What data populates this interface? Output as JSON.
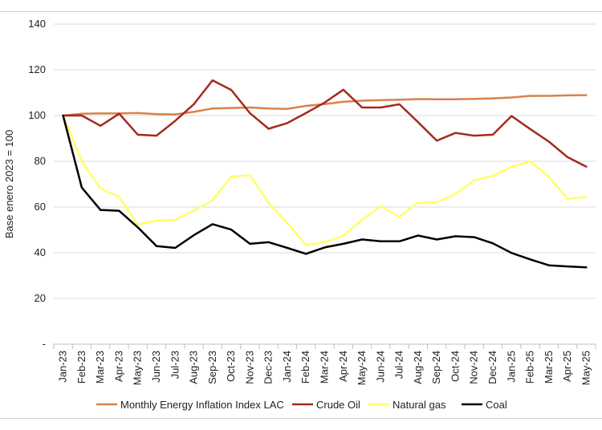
{
  "chart_data": {
    "type": "line",
    "title": "",
    "xlabel": "",
    "ylabel": "Base enero 2023 = 100",
    "ylim": [
      0,
      140
    ],
    "yticks": [
      {
        "value": 0,
        "label": "-"
      },
      {
        "value": 20,
        "label": "20"
      },
      {
        "value": 40,
        "label": "40"
      },
      {
        "value": 60,
        "label": "60"
      },
      {
        "value": 80,
        "label": "80"
      },
      {
        "value": 100,
        "label": "100"
      },
      {
        "value": 120,
        "label": "120"
      },
      {
        "value": 140,
        "label": "140"
      }
    ],
    "grid": "horizontal",
    "legend_position": "bottom",
    "categories": [
      "Jan-23",
      "Feb-23",
      "Mar-23",
      "Apr-23",
      "May-23",
      "Jun-23",
      "Jul-23",
      "Aug-23",
      "Sep-23",
      "Oct-23",
      "Nov-23",
      "Dec-23",
      "Jan-24",
      "Feb-24",
      "Mar-24",
      "Apr-24",
      "May-24",
      "Jun-24",
      "Jul-24",
      "Aug-24",
      "Sep-24",
      "Oct-24",
      "Nov-24",
      "Dec-24",
      "Jan-25",
      "Feb-25",
      "Mar-25",
      "Apr-25",
      "May-25"
    ],
    "series": [
      {
        "name": "Monthly Energy Inflation Index LAC",
        "color": "#D9824A",
        "values": [
          100,
          100.8,
          100.9,
          100.9,
          101.1,
          100.6,
          100.5,
          101.6,
          103.1,
          103.3,
          103.5,
          103.1,
          102.9,
          104.2,
          105.0,
          106.0,
          106.5,
          106.7,
          106.9,
          107.2,
          107.1,
          107.1,
          107.3,
          107.5,
          107.9,
          108.6,
          108.6,
          108.8,
          108.9
        ]
      },
      {
        "name": "Crude Oil",
        "color": "#A52A1E",
        "values": [
          100,
          100,
          95.5,
          100.8,
          91.6,
          91.2,
          97.7,
          105,
          115.4,
          111.2,
          101,
          94.2,
          96.7,
          101.1,
          105.7,
          111.3,
          103.5,
          103.5,
          104.9,
          97.1,
          89,
          92.4,
          91.2,
          91.6,
          99.8,
          94.1,
          88.6,
          81.8,
          77.6
        ]
      },
      {
        "name": "Natural gas",
        "color": "#FFFF66",
        "values": [
          100,
          80,
          68.1,
          64.4,
          52.3,
          54,
          54.4,
          58.3,
          62.9,
          73.3,
          73.9,
          61.7,
          53.1,
          43.3,
          44.6,
          47.4,
          54.4,
          60.4,
          55.7,
          61.9,
          62.1,
          65.6,
          71.7,
          73.6,
          77.6,
          79.9,
          73.1,
          63.6,
          64.4
        ]
      },
      {
        "name": "Coal",
        "color": "#000000",
        "values": [
          100,
          68.5,
          58.7,
          58.3,
          51.1,
          42.9,
          42.1,
          47.7,
          52.5,
          50.1,
          43.9,
          44.6,
          42.1,
          39.5,
          42.3,
          43.9,
          45.8,
          45,
          45,
          47.5,
          45.8,
          47.2,
          46.8,
          44.1,
          39.9,
          37.1,
          34.5,
          34,
          33.6
        ]
      }
    ]
  }
}
